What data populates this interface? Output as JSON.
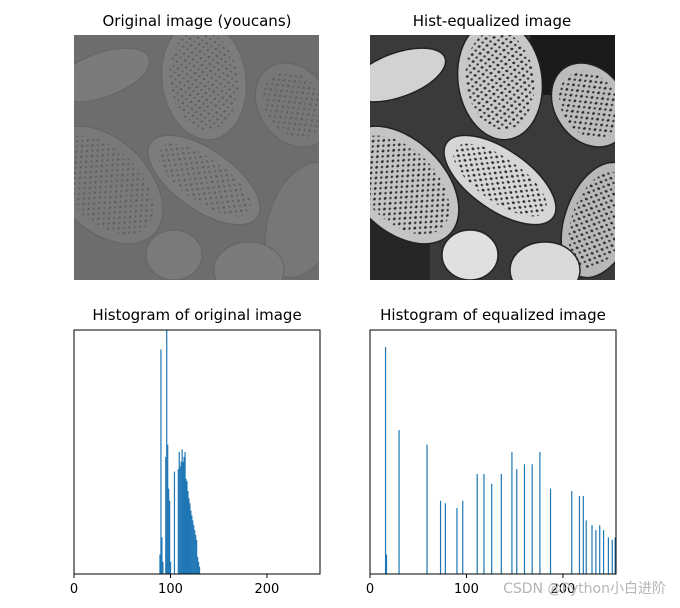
{
  "figure": {
    "watermark": "CSDN @Python小白进阶",
    "colors": {
      "bar": "#1f77b4",
      "axes": "#000000"
    }
  },
  "panels": {
    "original_image": {
      "title": "Original image (youcans)"
    },
    "equalized_image": {
      "title": "Hist-equalized image"
    }
  },
  "chart_data": [
    {
      "type": "bar",
      "title": "Histogram of original image",
      "xlim": [
        0,
        255
      ],
      "ylim": [
        0,
        1
      ],
      "x_ticks": [
        "0",
        "100",
        "200"
      ],
      "y_ticks": [],
      "grid": false,
      "bins": [
        89,
        90,
        91,
        92,
        95,
        96,
        97,
        98,
        99,
        100,
        104,
        108,
        109,
        110,
        111,
        112,
        113,
        114,
        115,
        116,
        117,
        118,
        119,
        120,
        121,
        122,
        123,
        124,
        125,
        126,
        127,
        128,
        129,
        130
      ],
      "values": [
        0.08,
        0.92,
        0.15,
        0.05,
        0.48,
        1.0,
        0.53,
        0.35,
        0.3,
        0.05,
        0.42,
        0.43,
        0.5,
        0.44,
        0.46,
        0.51,
        0.46,
        0.48,
        0.5,
        0.39,
        0.38,
        0.34,
        0.31,
        0.29,
        0.26,
        0.24,
        0.22,
        0.2,
        0.18,
        0.16,
        0.14,
        0.07,
        0.05,
        0.03
      ]
    },
    {
      "type": "bar",
      "title": "Histogram of equalized image",
      "xlim": [
        0,
        255
      ],
      "ylim": [
        0,
        1
      ],
      "x_ticks": [
        "0",
        "100",
        "200"
      ],
      "y_ticks": [],
      "grid": false,
      "bins": [
        16,
        17,
        30,
        59,
        73,
        78,
        90,
        96,
        111,
        118,
        126,
        136,
        147,
        152,
        160,
        168,
        176,
        187,
        209,
        217,
        221,
        224,
        230,
        234,
        238,
        242,
        247,
        251,
        254
      ],
      "values": [
        0.93,
        0.08,
        0.59,
        0.53,
        0.3,
        0.29,
        0.27,
        0.3,
        0.41,
        0.41,
        0.37,
        0.41,
        0.5,
        0.43,
        0.45,
        0.45,
        0.5,
        0.35,
        0.34,
        0.32,
        0.32,
        0.22,
        0.2,
        0.18,
        0.2,
        0.18,
        0.15,
        0.14,
        0.15
      ]
    }
  ]
}
